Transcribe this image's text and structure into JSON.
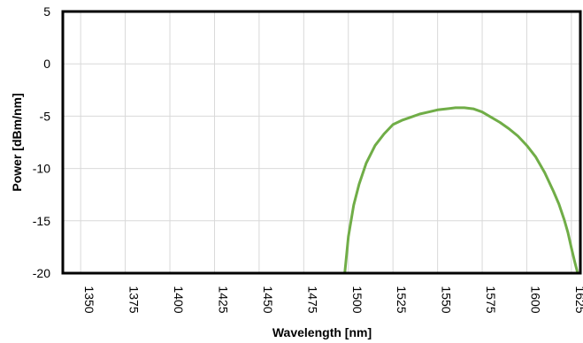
{
  "chart_data": {
    "type": "line",
    "title": "",
    "xlabel": "Wavelength [nm]",
    "ylabel": "Power [dBm/nm]",
    "xlim": [
      1340,
      1630
    ],
    "ylim": [
      -20,
      5
    ],
    "xticks": [
      1350,
      1375,
      1400,
      1425,
      1450,
      1475,
      1500,
      1525,
      1550,
      1575,
      1600,
      1625
    ],
    "yticks": [
      5,
      0,
      -5,
      -10,
      -15,
      -20
    ],
    "grid": true,
    "legend": "none",
    "series": [
      {
        "color": "#70ad47",
        "x": [
          1498,
          1500,
          1503,
          1506,
          1510,
          1515,
          1520,
          1525,
          1530,
          1535,
          1540,
          1545,
          1550,
          1555,
          1560,
          1565,
          1570,
          1575,
          1580,
          1585,
          1590,
          1595,
          1600,
          1605,
          1610,
          1615,
          1618,
          1621,
          1623,
          1625,
          1627,
          1628.5
        ],
        "y": [
          -20,
          -16.5,
          -13.5,
          -11.5,
          -9.5,
          -7.8,
          -6.7,
          -5.8,
          -5.4,
          -5.1,
          -4.8,
          -4.6,
          -4.4,
          -4.3,
          -4.2,
          -4.2,
          -4.3,
          -4.6,
          -5.1,
          -5.6,
          -6.2,
          -6.9,
          -7.8,
          -8.9,
          -10.4,
          -12.2,
          -13.4,
          -14.9,
          -16.1,
          -17.6,
          -19.0,
          -20
        ]
      }
    ]
  }
}
